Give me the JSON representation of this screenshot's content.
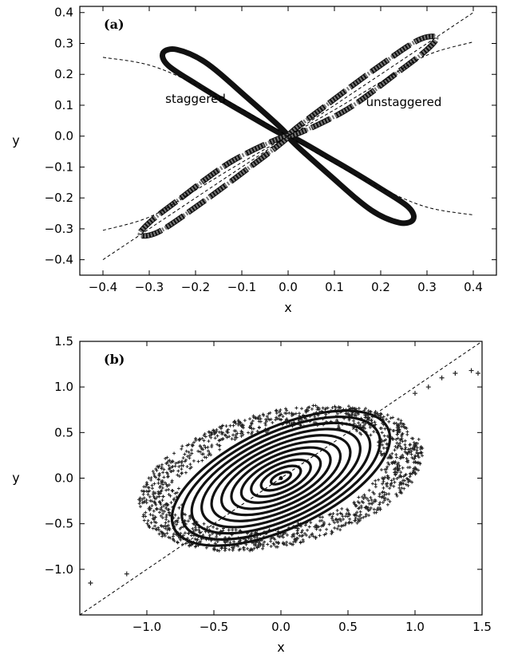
{
  "chart_data": [
    {
      "type": "line",
      "panel_label": "(a)",
      "xlabel": "x",
      "ylabel": "y",
      "xlim": [
        -0.45,
        0.45
      ],
      "ylim": [
        -0.45,
        0.42
      ],
      "xticks": [
        -0.4,
        -0.3,
        -0.2,
        -0.1,
        0.0,
        0.1,
        0.2,
        0.3,
        0.4
      ],
      "xtick_labels": [
        "−0.4",
        "−0.3",
        "−0.2",
        "−0.1",
        "0.0",
        "0.1",
        "0.2",
        "0.3",
        "0.4"
      ],
      "yticks": [
        -0.4,
        -0.3,
        -0.2,
        -0.1,
        0.0,
        0.1,
        0.2,
        0.3,
        0.4
      ],
      "ytick_labels": [
        "−0.4",
        "−0.3",
        "−0.2",
        "−0.1",
        "0.0",
        "0.1",
        "0.2",
        "0.3",
        "0.4"
      ],
      "grid": false,
      "annotations": [
        {
          "text": "staggered",
          "x": -0.2,
          "y": 0.12
        },
        {
          "text": "unstaggered",
          "x": 0.25,
          "y": 0.11
        }
      ],
      "series": [
        {
          "style": "thick-loop",
          "x": [
            0,
            -0.1,
            -0.2,
            -0.26,
            -0.27,
            -0.24,
            -0.18,
            -0.1,
            0
          ],
          "y": [
            0,
            0.08,
            0.17,
            0.23,
            0.27,
            0.28,
            0.24,
            0.14,
            0
          ]
        },
        {
          "style": "thick-loop",
          "x": [
            0,
            0.1,
            0.2,
            0.26,
            0.27,
            0.24,
            0.18,
            0.1,
            0
          ],
          "y": [
            0,
            -0.08,
            -0.17,
            -0.23,
            -0.27,
            -0.28,
            -0.24,
            -0.14,
            0
          ]
        },
        {
          "style": "marker-loop",
          "x": [
            0,
            0.1,
            0.2,
            0.28,
            0.32,
            0.3,
            0.24,
            0.12,
            0
          ],
          "y": [
            0,
            0.12,
            0.23,
            0.31,
            0.32,
            0.28,
            0.21,
            0.08,
            0
          ]
        },
        {
          "style": "marker-loop",
          "x": [
            0,
            -0.1,
            -0.2,
            -0.28,
            -0.32,
            -0.3,
            -0.24,
            -0.12,
            0
          ],
          "y": [
            0,
            -0.12,
            -0.23,
            -0.31,
            -0.32,
            -0.28,
            -0.21,
            -0.08,
            0
          ]
        },
        {
          "style": "dashed",
          "x": [
            -0.4,
            -0.3,
            -0.2,
            -0.1,
            0.0,
            0.1,
            0.2,
            0.3,
            0.4
          ],
          "y": [
            -0.4,
            -0.3,
            -0.2,
            -0.1,
            0.0,
            0.1,
            0.2,
            0.3,
            0.4
          ]
        },
        {
          "style": "dashed",
          "x": [
            -0.4,
            -0.3,
            -0.2,
            -0.1,
            0.0,
            0.1,
            0.2,
            0.3,
            0.4
          ],
          "y": [
            -0.305,
            -0.262,
            -0.175,
            -0.085,
            0.0,
            0.085,
            0.175,
            0.262,
            0.305
          ]
        },
        {
          "style": "dashed",
          "x": [
            -0.4,
            -0.3,
            -0.2,
            -0.1,
            0.0,
            0.1,
            0.2,
            0.3,
            0.4
          ],
          "y": [
            0.255,
            0.23,
            0.168,
            0.088,
            0.0,
            -0.088,
            -0.168,
            -0.23,
            -0.255
          ]
        }
      ]
    },
    {
      "type": "scatter",
      "panel_label": "(b)",
      "xlabel": "x",
      "ylabel": "y",
      "xlim": [
        -1.5,
        1.5
      ],
      "ylim": [
        -1.5,
        1.5
      ],
      "xticks": [
        -1.0,
        -0.5,
        0.0,
        0.5,
        1.0,
        1.5
      ],
      "xtick_labels": [
        "−1.0",
        "−0.5",
        "0.0",
        "0.5",
        "1.0",
        "1.5"
      ],
      "yticks": [
        -1.0,
        -0.5,
        0.0,
        0.5,
        1.0,
        1.5
      ],
      "ytick_labels": [
        "−1.0",
        "−0.5",
        "0.0",
        "0.5",
        "1.0",
        "1.5"
      ],
      "grid": false,
      "reference_line": {
        "x": [
          -1.5,
          1.5
        ],
        "y": [
          -1.5,
          1.5
        ],
        "style": "dashed"
      },
      "rings": [
        {
          "major": 0.08,
          "minor": 0.05,
          "angle_deg": 25
        },
        {
          "major": 0.16,
          "minor": 0.1,
          "angle_deg": 25
        },
        {
          "major": 0.24,
          "minor": 0.15,
          "angle_deg": 25
        },
        {
          "major": 0.32,
          "minor": 0.2,
          "angle_deg": 25
        },
        {
          "major": 0.4,
          "minor": 0.25,
          "angle_deg": 25
        },
        {
          "major": 0.48,
          "minor": 0.3,
          "angle_deg": 25
        },
        {
          "major": 0.56,
          "minor": 0.35,
          "angle_deg": 25
        },
        {
          "major": 0.64,
          "minor": 0.4,
          "angle_deg": 25
        },
        {
          "major": 0.72,
          "minor": 0.45,
          "angle_deg": 25
        },
        {
          "major": 0.8,
          "minor": 0.5,
          "angle_deg": 25
        },
        {
          "major": 0.88,
          "minor": 0.55,
          "angle_deg": 25
        }
      ],
      "scatter_cloud": {
        "major": 1.1,
        "minor": 0.7,
        "angle_deg": 25
      },
      "outliers": {
        "x": [
          -1.42,
          -1.15,
          1.2,
          1.3,
          1.42,
          1.47,
          1.0,
          1.1
        ],
        "y": [
          -1.15,
          -1.05,
          1.1,
          1.15,
          1.18,
          1.15,
          0.93,
          1.0
        ]
      }
    }
  ]
}
